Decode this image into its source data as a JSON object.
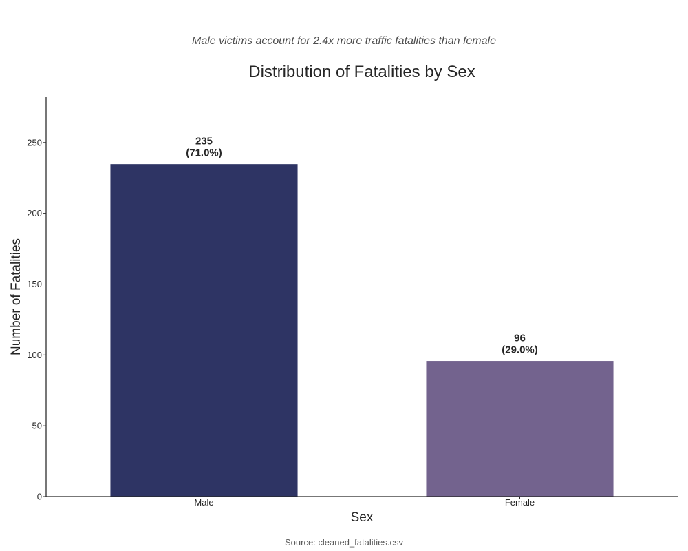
{
  "chart_data": {
    "type": "bar",
    "title": "Distribution of Fatalities by Sex",
    "subtitle": "Male victims account for 2.4x more traffic fatalities than female",
    "xlabel": "Sex",
    "ylabel": "Number of Fatalities",
    "categories": [
      "Male",
      "Female"
    ],
    "values": [
      235,
      96
    ],
    "value_labels": [
      "235",
      "96"
    ],
    "percent_labels": [
      "(71.0%)",
      "(29.0%)"
    ],
    "colors": [
      "#2e3464",
      "#73638e"
    ],
    "ylim": [
      0,
      282
    ],
    "yticks": [
      0,
      50,
      100,
      150,
      200,
      250
    ],
    "grid": false,
    "legend": "none",
    "source": "Source: cleaned_fatalities.csv"
  }
}
